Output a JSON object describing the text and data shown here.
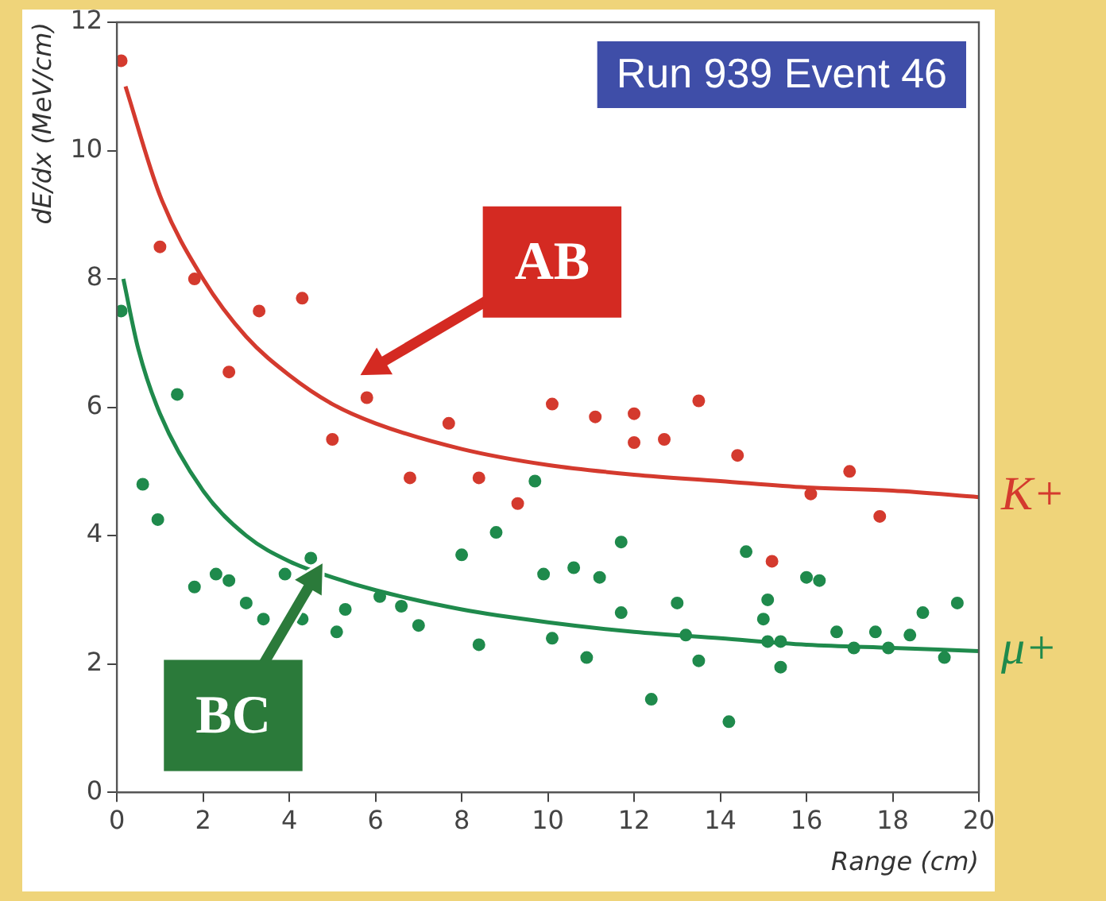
{
  "chart_data": {
    "type": "scatter",
    "xlabel": "Range (cm)",
    "ylabel": "dE/dx (MeV/cm)",
    "xlim": [
      0,
      20
    ],
    "xticks": [
      0,
      2,
      4,
      6,
      8,
      10,
      12,
      14,
      16,
      18,
      20
    ],
    "ylim": [
      0,
      12
    ],
    "yticks": [
      0,
      2,
      4,
      6,
      8,
      10,
      12
    ],
    "grid": false,
    "legend": false,
    "annotations": [
      "Run 939 Event 46",
      "AB",
      "BC"
    ],
    "series": [
      {
        "marker": "circle",
        "color": "#d43a2e",
        "x": [
          0.1,
          1.0,
          1.8,
          2.6,
          3.3,
          4.3,
          5.0,
          5.8,
          6.8,
          7.7,
          8.4,
          9.3,
          10.1,
          11.1,
          12.0,
          12.0,
          12.7,
          13.5,
          14.4,
          15.2,
          16.1,
          17.0,
          17.7
        ],
        "values": [
          11.4,
          8.5,
          8.0,
          6.55,
          7.5,
          7.7,
          5.5,
          6.15,
          4.9,
          5.75,
          4.9,
          4.5,
          6.05,
          5.85,
          5.9,
          5.45,
          5.5,
          6.1,
          5.25,
          3.6,
          4.65,
          5.0,
          4.3
        ]
      },
      {
        "marker": "circle",
        "color": "#1f8a4c",
        "x": [
          0.1,
          0.6,
          0.95,
          1.4,
          1.8,
          2.3,
          2.6,
          3.0,
          3.4,
          3.9,
          4.3,
          4.5,
          5.1,
          5.3,
          6.1,
          6.6,
          7.0,
          8.0,
          8.4,
          8.8,
          9.7,
          9.9,
          10.1,
          10.6,
          10.9,
          11.2,
          11.7,
          11.7,
          12.4,
          13.0,
          13.2,
          13.5,
          14.2,
          14.6,
          15.0,
          15.1,
          15.1,
          15.4,
          15.4,
          16.0,
          16.3,
          16.7,
          17.1,
          17.6,
          17.9,
          18.4,
          18.7,
          19.2,
          19.5
        ],
        "values": [
          7.5,
          4.8,
          4.25,
          6.2,
          3.2,
          3.4,
          3.3,
          2.95,
          2.7,
          3.4,
          2.7,
          3.65,
          2.5,
          2.85,
          3.05,
          2.9,
          2.6,
          3.7,
          2.3,
          4.05,
          4.85,
          3.4,
          2.4,
          3.5,
          2.1,
          3.35,
          3.9,
          2.8,
          1.45,
          2.95,
          2.45,
          2.05,
          1.1,
          3.75,
          2.7,
          3.0,
          2.35,
          2.35,
          1.95,
          3.35,
          3.3,
          2.5,
          2.25,
          2.5,
          2.25,
          2.45,
          2.8,
          2.1,
          2.95
        ]
      },
      {
        "type": "line",
        "marker": "none",
        "name": "K+",
        "color": "#d43a2e",
        "line_style": "solid",
        "x": [
          0.2,
          1,
          2,
          3,
          4,
          5,
          6,
          8,
          10,
          12,
          14,
          16,
          18,
          20
        ],
        "values": [
          11.0,
          9.3,
          8.0,
          7.1,
          6.5,
          6.05,
          5.75,
          5.35,
          5.1,
          4.95,
          4.85,
          4.75,
          4.7,
          4.6
        ]
      },
      {
        "type": "line",
        "marker": "none",
        "name": "μ+",
        "color": "#1f8a4c",
        "line_style": "solid",
        "x": [
          0.15,
          0.5,
          1,
          2,
          3,
          4,
          5,
          6,
          8,
          10,
          12,
          14,
          16,
          18,
          20
        ],
        "values": [
          8.0,
          6.9,
          5.9,
          4.7,
          4.0,
          3.6,
          3.35,
          3.15,
          2.85,
          2.65,
          2.5,
          2.4,
          2.3,
          2.25,
          2.2
        ]
      }
    ]
  }
}
